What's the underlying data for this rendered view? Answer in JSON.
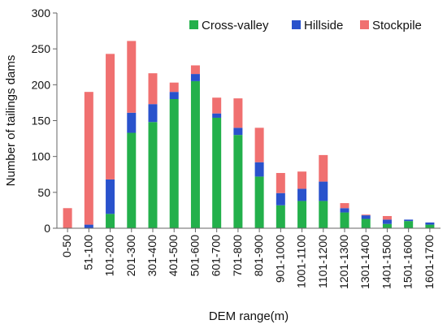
{
  "chart_data": {
    "type": "bar",
    "stacked": true,
    "xlabel": "DEM range(m)",
    "ylabel": "Number of tailings dams",
    "ylim": [
      0,
      300
    ],
    "yticks": [
      0,
      50,
      100,
      150,
      200,
      250,
      300
    ],
    "grid": false,
    "legend_position": "top-right",
    "categories": [
      "0-50",
      "51-100",
      "101-200",
      "201-300",
      "301-400",
      "401-500",
      "501-600",
      "601-700",
      "701-800",
      "801-900",
      "901-1000",
      "1001-1100",
      "1101-1200",
      "1201-1300",
      "1301-1400",
      "1401-1500",
      "1501-1600",
      "1601-1700"
    ],
    "series": [
      {
        "name": "Cross-valley",
        "color": "#23b04b",
        "values": [
          0,
          0,
          20,
          133,
          148,
          180,
          205,
          154,
          130,
          72,
          32,
          38,
          38,
          22,
          13,
          6,
          10,
          5
        ]
      },
      {
        "name": "Hillside",
        "color": "#2952cc",
        "values": [
          0,
          5,
          48,
          28,
          25,
          10,
          10,
          6,
          10,
          20,
          17,
          17,
          27,
          6,
          5,
          6,
          2,
          3
        ]
      },
      {
        "name": "Stockpile",
        "color": "#f07070",
        "values": [
          28,
          185,
          175,
          100,
          43,
          13,
          12,
          22,
          41,
          48,
          28,
          24,
          37,
          7,
          1,
          5,
          0,
          0
        ]
      }
    ]
  }
}
